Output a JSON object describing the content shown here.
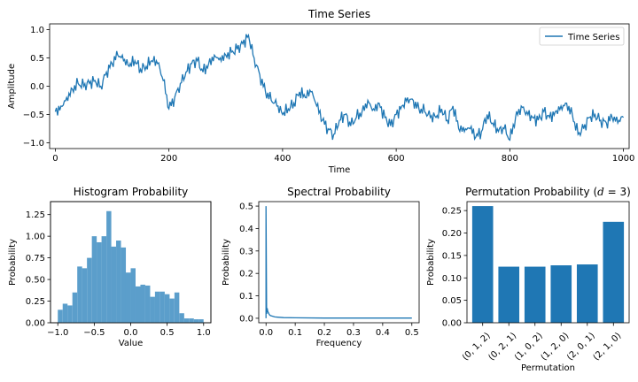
{
  "colors": {
    "series": "#1f77b4",
    "histogram": "#5b9ecb",
    "axes": "#000000",
    "background": "#ffffff"
  },
  "chart_data": [
    {
      "id": "time_series",
      "type": "line",
      "title": "Time Series",
      "xlabel": "Time",
      "ylabel": "Amplitude",
      "xlim": [
        -10,
        1010
      ],
      "ylim": [
        -1.1,
        1.1
      ],
      "xticks": [
        0,
        200,
        400,
        600,
        800,
        1000
      ],
      "xtick_labels": [
        "0",
        "200",
        "400",
        "600",
        "800",
        "1000"
      ],
      "yticks": [
        -1.0,
        -0.5,
        0.0,
        0.5,
        1.0
      ],
      "ytick_labels": [
        "−1.0",
        "−0.5",
        "0.0",
        "0.5",
        "1.0"
      ],
      "legend": {
        "entries": [
          "Time Series"
        ],
        "placement": "top-right"
      },
      "series": [
        {
          "name": "Time Series",
          "x": [
            0,
            10,
            20,
            30,
            40,
            50,
            60,
            70,
            80,
            90,
            100,
            110,
            120,
            130,
            140,
            150,
            160,
            170,
            180,
            190,
            200,
            210,
            220,
            230,
            240,
            250,
            260,
            270,
            280,
            290,
            300,
            310,
            320,
            330,
            340,
            350,
            360,
            370,
            380,
            390,
            400,
            410,
            420,
            430,
            440,
            450,
            460,
            470,
            480,
            490,
            500,
            510,
            520,
            530,
            540,
            550,
            560,
            570,
            580,
            590,
            600,
            610,
            620,
            630,
            640,
            650,
            660,
            670,
            680,
            690,
            700,
            710,
            720,
            730,
            740,
            750,
            760,
            770,
            780,
            790,
            800,
            810,
            820,
            830,
            840,
            850,
            860,
            870,
            880,
            890,
            900,
            910,
            920,
            930,
            940,
            950,
            960,
            970,
            980,
            990,
            1000
          ],
          "y": [
            -0.45,
            -0.35,
            -0.2,
            -0.05,
            0.05,
            0.0,
            0.05,
            0.1,
            0.0,
            0.25,
            0.4,
            0.55,
            0.45,
            0.35,
            0.45,
            0.3,
            0.35,
            0.45,
            0.4,
            0.1,
            -0.4,
            -0.2,
            0.05,
            0.25,
            0.4,
            0.45,
            0.25,
            0.4,
            0.55,
            0.5,
            0.55,
            0.6,
            0.65,
            0.75,
            0.9,
            0.5,
            0.2,
            -0.1,
            -0.25,
            -0.35,
            -0.5,
            -0.4,
            -0.3,
            -0.1,
            -0.2,
            -0.1,
            -0.35,
            -0.6,
            -0.75,
            -0.85,
            -0.6,
            -0.5,
            -0.7,
            -0.55,
            -0.45,
            -0.25,
            -0.4,
            -0.3,
            -0.55,
            -0.7,
            -0.5,
            -0.35,
            -0.2,
            -0.25,
            -0.4,
            -0.45,
            -0.55,
            -0.55,
            -0.4,
            -0.6,
            -0.35,
            -0.75,
            -0.8,
            -0.75,
            -0.9,
            -0.8,
            -0.5,
            -0.65,
            -0.8,
            -0.75,
            -0.95,
            -0.55,
            -0.35,
            -0.45,
            -0.55,
            -0.6,
            -0.45,
            -0.55,
            -0.45,
            -0.35,
            -0.3,
            -0.5,
            -0.85,
            -0.75,
            -0.55,
            -0.5,
            -0.6,
            -0.65,
            -0.55,
            -0.65,
            -0.55
          ]
        }
      ]
    },
    {
      "id": "histogram",
      "type": "bar",
      "title": "Histogram Probability",
      "xlabel": "Value",
      "ylabel": "Probability",
      "xlim": [
        -1.1,
        1.1
      ],
      "ylim": [
        0,
        1.4
      ],
      "xticks": [
        -1.0,
        -0.5,
        0.0,
        0.5,
        1.0
      ],
      "xtick_labels": [
        "−1.0",
        "−0.5",
        "0.0",
        "0.5",
        "1.0"
      ],
      "yticks": [
        0.0,
        0.25,
        0.5,
        0.75,
        1.0,
        1.25
      ],
      "ytick_labels": [
        "0.00",
        "0.25",
        "0.50",
        "0.75",
        "1.00",
        "1.25"
      ],
      "bin_width": 0.0667,
      "bin_starts": [
        -1.0,
        -0.933,
        -0.867,
        -0.8,
        -0.733,
        -0.667,
        -0.6,
        -0.533,
        -0.467,
        -0.4,
        -0.333,
        -0.267,
        -0.2,
        -0.133,
        -0.067,
        0.0,
        0.067,
        0.133,
        0.2,
        0.267,
        0.333,
        0.4,
        0.467,
        0.533,
        0.6,
        0.667,
        0.733,
        0.8,
        0.867,
        0.933
      ],
      "values": [
        0.15,
        0.22,
        0.2,
        0.35,
        0.65,
        0.63,
        0.75,
        1.0,
        0.93,
        1.0,
        1.29,
        0.88,
        0.95,
        0.87,
        0.58,
        0.63,
        0.42,
        0.44,
        0.43,
        0.3,
        0.36,
        0.36,
        0.33,
        0.28,
        0.35,
        0.11,
        0.05,
        0.05,
        0.04,
        0.04
      ]
    },
    {
      "id": "spectral",
      "type": "line",
      "title": "Spectral Probability",
      "xlabel": "Frequency",
      "ylabel": "Probability",
      "xlim": [
        -0.025,
        0.525
      ],
      "ylim": [
        -0.02,
        0.52
      ],
      "xticks": [
        0.0,
        0.1,
        0.2,
        0.3,
        0.4,
        0.5
      ],
      "xtick_labels": [
        "0.0",
        "0.1",
        "0.2",
        "0.3",
        "0.4",
        "0.5"
      ],
      "yticks": [
        0.0,
        0.1,
        0.2,
        0.3,
        0.4,
        0.5
      ],
      "ytick_labels": [
        "0.0",
        "0.1",
        "0.2",
        "0.3",
        "0.4",
        "0.5"
      ],
      "series": [
        {
          "x": [
            0.0,
            0.0,
            0.002,
            0.004,
            0.006,
            0.008,
            0.01,
            0.012,
            0.015,
            0.02,
            0.025,
            0.03,
            0.04,
            0.06,
            0.1,
            0.2,
            0.3,
            0.4,
            0.5
          ],
          "y": [
            0.0,
            0.5,
            0.02,
            0.045,
            0.03,
            0.025,
            0.02,
            0.015,
            0.012,
            0.01,
            0.008,
            0.006,
            0.005,
            0.003,
            0.002,
            0.001,
            0.001,
            0.001,
            0.001
          ]
        }
      ]
    },
    {
      "id": "permutation",
      "type": "bar",
      "title": "Permutation Probability (d = 3)",
      "title_prefix": "Permutation Probability (",
      "title_math_var": "d",
      "title_math_rest": " = 3)",
      "xlabel": "Permutation",
      "ylabel": "Probability",
      "ylim": [
        0,
        0.27
      ],
      "yticks": [
        0.0,
        0.05,
        0.1,
        0.15,
        0.2,
        0.25
      ],
      "ytick_labels": [
        "0.00",
        "0.05",
        "0.10",
        "0.15",
        "0.20",
        "0.25"
      ],
      "categories": [
        "(0, 1, 2)",
        "(0, 2, 1)",
        "(1, 0, 2)",
        "(1, 2, 0)",
        "(2, 0, 1)",
        "(2, 1, 0)"
      ],
      "values": [
        0.26,
        0.125,
        0.125,
        0.128,
        0.13,
        0.225
      ]
    }
  ]
}
